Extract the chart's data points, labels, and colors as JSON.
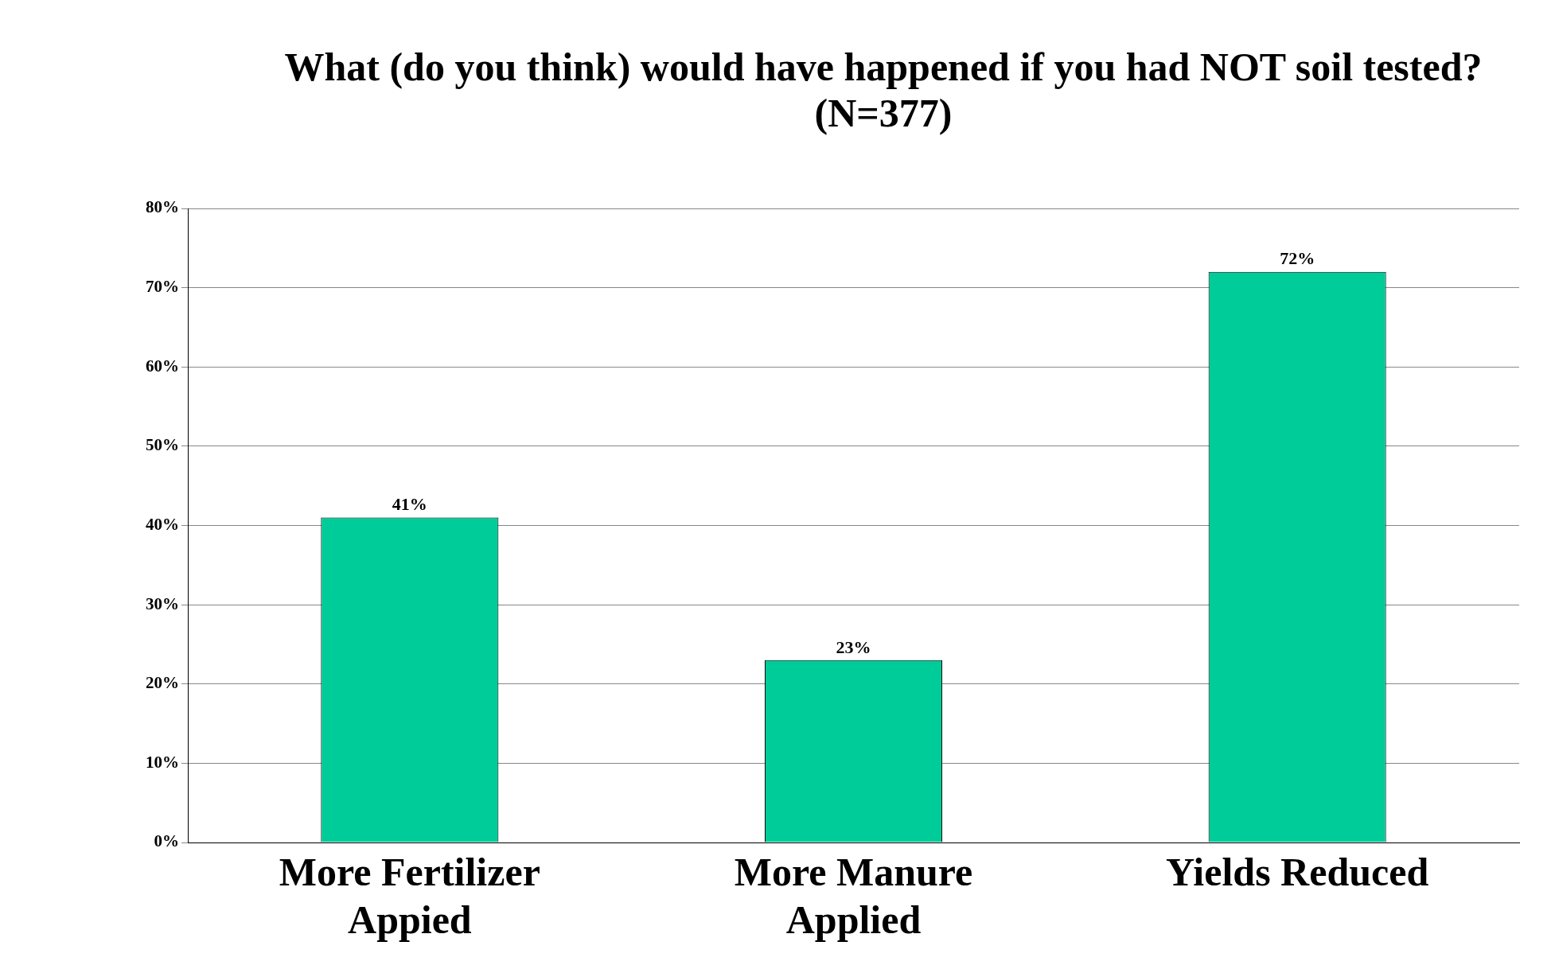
{
  "chart_data": {
    "type": "bar",
    "title": "What (do you think) would have happened if you had NOT soil tested? (N=377)",
    "categories": [
      "More Fertilizer Appied",
      "More Manure Applied",
      "Yields Reduced"
    ],
    "values": [
      41,
      23,
      72
    ],
    "color": "#00cc99",
    "value_labels": [
      "41%",
      "23%",
      "72%"
    ],
    "ylim": [
      0,
      80
    ],
    "yticks": [
      {
        "value": 0,
        "label": "0%"
      },
      {
        "value": 10,
        "label": "10%"
      },
      {
        "value": 20,
        "label": "20%"
      },
      {
        "value": 30,
        "label": "30%"
      },
      {
        "value": 40,
        "label": "40%"
      },
      {
        "value": 50,
        "label": "50%"
      },
      {
        "value": 60,
        "label": "60%"
      },
      {
        "value": 70,
        "label": "70%"
      },
      {
        "value": 80,
        "label": "80%"
      }
    ],
    "grid": "y",
    "legend": false
  }
}
